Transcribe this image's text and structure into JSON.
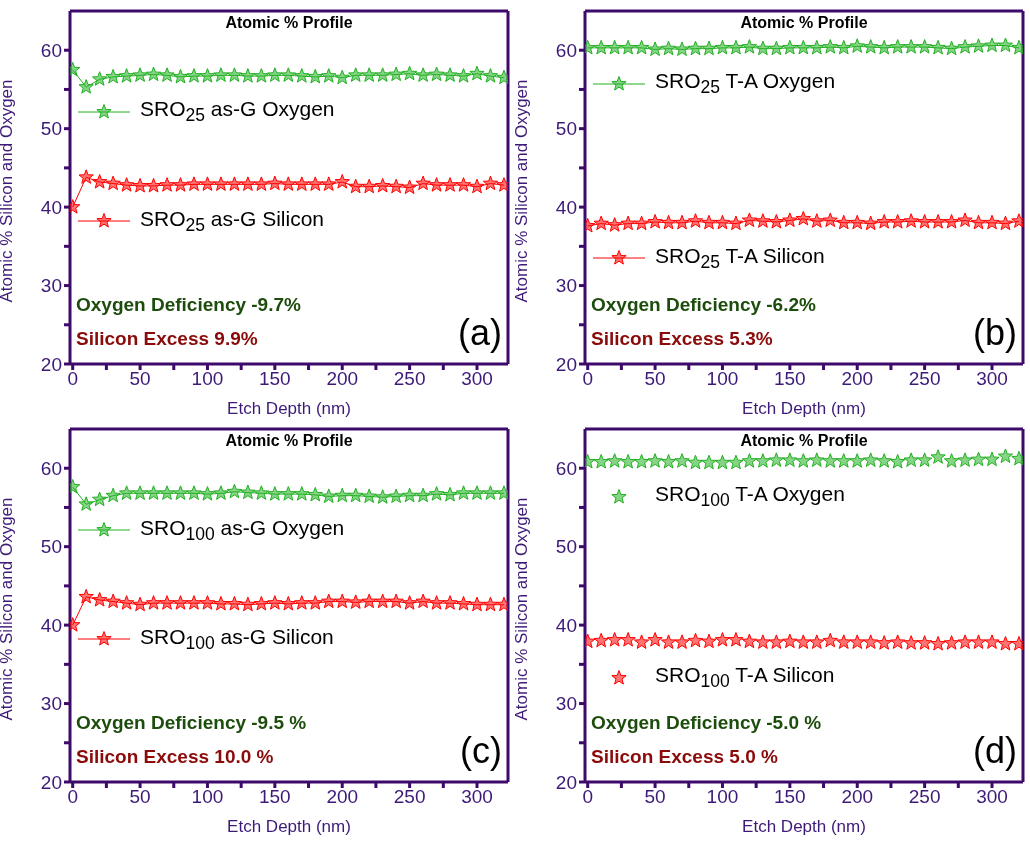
{
  "chart_data": [
    {
      "type": "line",
      "title": "Atomic % Profile",
      "xlabel": "Etch Depth (nm)",
      "ylabel": "Atomic % Silicon and Oxygen",
      "legend": "top left",
      "marker": "star",
      "x": [
        0,
        10,
        20,
        30,
        40,
        50,
        60,
        70,
        80,
        90,
        100,
        110,
        120,
        130,
        140,
        150,
        160,
        170,
        180,
        190,
        200,
        210,
        220,
        230,
        240,
        250,
        260,
        270,
        280,
        290,
        300,
        310,
        320
      ],
      "series": [
        {
          "name": "SRO$_{25}$ as-G Oxygen",
          "color": "#22b022",
          "values": [
            57.5,
            55.3,
            56.3,
            56.6,
            56.7,
            56.8,
            56.9,
            56.8,
            56.6,
            56.7,
            56.7,
            56.8,
            56.8,
            56.7,
            56.7,
            56.8,
            56.8,
            56.7,
            56.6,
            56.7,
            56.5,
            56.8,
            56.8,
            56.8,
            56.9,
            57.0,
            56.8,
            56.9,
            56.8,
            56.7,
            57.0,
            56.7,
            56.5
          ]
        },
        {
          "name": "SRO$_{25}$ as-G Silicon",
          "color": "#ff0000",
          "values": [
            40.0,
            43.8,
            43.2,
            43.0,
            42.8,
            42.7,
            42.7,
            42.8,
            42.8,
            42.9,
            42.9,
            42.9,
            42.9,
            42.9,
            42.9,
            43.0,
            42.9,
            42.9,
            42.9,
            42.9,
            43.2,
            42.6,
            42.6,
            42.7,
            42.6,
            42.5,
            43.0,
            42.8,
            42.8,
            42.8,
            42.6,
            43.0,
            42.8
          ]
        }
      ],
      "xlim": [
        -2,
        323
      ],
      "ylim": [
        20,
        65
      ],
      "xticks": [
        0,
        {
          "value": 25,
          "label": null
        },
        50,
        {
          "value": 75,
          "label": null
        },
        100,
        {
          "value": 125,
          "label": null
        },
        150,
        {
          "value": 175,
          "label": null
        },
        200,
        {
          "value": 225,
          "label": null
        },
        250,
        {
          "value": 275,
          "label": null
        },
        300
      ],
      "yticks": [
        20,
        {
          "value": 25,
          "label": null
        },
        30,
        {
          "value": 35,
          "label": null
        },
        40,
        {
          "value": 45,
          "label": null
        },
        50,
        {
          "value": 55,
          "label": null
        },
        60
      ],
      "annotations": [
        "Oxygen Deficiency -9.7%",
        "Silicon Excess 9.9%",
        "(a)"
      ]
    },
    {
      "type": "line",
      "title": "Atomic % Profile",
      "xlabel": "Etch Depth (nm)",
      "ylabel": "Atomic % Silicon and Oxygen",
      "legend": "top left",
      "marker": "star",
      "x": [
        0,
        10,
        20,
        30,
        40,
        50,
        60,
        70,
        80,
        90,
        100,
        110,
        120,
        130,
        140,
        150,
        160,
        170,
        180,
        190,
        200,
        210,
        220,
        230,
        240,
        250,
        260,
        270,
        280,
        290,
        300,
        310,
        320
      ],
      "series": [
        {
          "name": "SRO$_{25}$ T-A Oxygen",
          "color": "#22b022",
          "values": [
            60.3,
            60.3,
            60.3,
            60.3,
            60.3,
            60.1,
            60.2,
            60.1,
            60.2,
            60.2,
            60.3,
            60.3,
            60.4,
            60.2,
            60.2,
            60.3,
            60.3,
            60.3,
            60.4,
            60.3,
            60.5,
            60.4,
            60.3,
            60.4,
            60.4,
            60.4,
            60.3,
            60.2,
            60.4,
            60.5,
            60.6,
            60.6,
            60.3
          ]
        },
        {
          "name": "SRO$_{25}$ T-A Silicon",
          "color": "#ff0000",
          "values": [
            37.6,
            37.9,
            37.7,
            37.9,
            37.9,
            38.1,
            38.0,
            38.0,
            38.2,
            38.0,
            38.0,
            37.9,
            38.3,
            38.2,
            38.1,
            38.3,
            38.5,
            38.2,
            38.3,
            38.0,
            38.0,
            37.9,
            38.1,
            38.1,
            38.2,
            38.1,
            38.1,
            38.1,
            38.3,
            38.0,
            38.0,
            37.9,
            38.2
          ]
        }
      ],
      "xlim": [
        -2,
        323
      ],
      "ylim": [
        20,
        65
      ],
      "xticks": [
        0,
        {
          "value": 25,
          "label": null
        },
        50,
        {
          "value": 75,
          "label": null
        },
        100,
        {
          "value": 125,
          "label": null
        },
        150,
        {
          "value": 175,
          "label": null
        },
        200,
        {
          "value": 225,
          "label": null
        },
        250,
        {
          "value": 275,
          "label": null
        },
        300
      ],
      "yticks": [
        20,
        {
          "value": 25,
          "label": null
        },
        30,
        {
          "value": 35,
          "label": null
        },
        40,
        {
          "value": 45,
          "label": null
        },
        50,
        {
          "value": 55,
          "label": null
        },
        60
      ],
      "annotations": [
        "Oxygen Deficiency -6.2%",
        "Silicon Excess 5.3%",
        "(b)"
      ]
    },
    {
      "type": "line",
      "title": "Atomic % Profile",
      "xlabel": "Etch Depth (nm)",
      "ylabel": "Atomic % Silicon and Oxygen",
      "legend": "top left",
      "marker": "star",
      "x": [
        0,
        10,
        20,
        30,
        40,
        50,
        60,
        70,
        80,
        90,
        100,
        110,
        120,
        130,
        140,
        150,
        160,
        170,
        180,
        190,
        200,
        210,
        220,
        230,
        240,
        250,
        260,
        270,
        280,
        290,
        300,
        310,
        320
      ],
      "series": [
        {
          "name": "SRO$_{100}$ as-G Oxygen",
          "color": "#22b022",
          "values": [
            57.6,
            55.4,
            56.0,
            56.5,
            56.8,
            56.8,
            56.8,
            56.8,
            56.8,
            56.8,
            56.7,
            56.8,
            57.0,
            56.9,
            56.8,
            56.7,
            56.7,
            56.7,
            56.6,
            56.4,
            56.5,
            56.5,
            56.4,
            56.3,
            56.4,
            56.5,
            56.5,
            56.7,
            56.6,
            56.8,
            56.8,
            56.8,
            56.8
          ]
        },
        {
          "name": "SRO$_{100}$ as-G Silicon",
          "color": "#ff0000",
          "values": [
            40.0,
            43.6,
            43.2,
            43.0,
            42.8,
            42.6,
            42.8,
            42.8,
            42.8,
            42.8,
            42.8,
            42.7,
            42.7,
            42.6,
            42.7,
            42.8,
            42.7,
            42.8,
            42.8,
            43.0,
            43.0,
            42.9,
            43.0,
            43.0,
            43.0,
            42.8,
            43.0,
            42.8,
            42.8,
            42.7,
            42.6,
            42.6,
            42.6
          ]
        }
      ],
      "xlim": [
        -2,
        323
      ],
      "ylim": [
        20,
        65
      ],
      "xticks": [
        0,
        {
          "value": 25,
          "label": null
        },
        50,
        {
          "value": 75,
          "label": null
        },
        100,
        {
          "value": 125,
          "label": null
        },
        150,
        {
          "value": 175,
          "label": null
        },
        200,
        {
          "value": 225,
          "label": null
        },
        250,
        {
          "value": 275,
          "label": null
        },
        300
      ],
      "yticks": [
        20,
        {
          "value": 25,
          "label": null
        },
        30,
        {
          "value": 35,
          "label": null
        },
        40,
        {
          "value": 45,
          "label": null
        },
        50,
        {
          "value": 55,
          "label": null
        },
        60
      ],
      "annotations": [
        "Oxygen Deficiency -9.5 %",
        "Silicon Excess 10.0 %",
        "(c)"
      ]
    },
    {
      "type": "scatter",
      "title": "Atomic % Profile",
      "xlabel": "Etch Depth (nm)",
      "ylabel": "Atomic % Silicon and Oxygen",
      "legend": "top left",
      "marker": "star",
      "x": [
        0,
        10,
        20,
        30,
        40,
        50,
        60,
        70,
        80,
        90,
        100,
        110,
        120,
        130,
        140,
        150,
        160,
        170,
        180,
        190,
        200,
        210,
        220,
        230,
        240,
        250,
        260,
        270,
        280,
        290,
        300,
        310,
        320
      ],
      "series": [
        {
          "name": "SRO$_{100}$ T-A Oxygen",
          "color": "#22b022",
          "values": [
            60.8,
            60.8,
            60.9,
            60.8,
            60.8,
            60.9,
            60.8,
            60.9,
            60.7,
            60.7,
            60.7,
            60.7,
            60.9,
            60.9,
            61.0,
            61.0,
            60.9,
            61.0,
            60.9,
            60.9,
            60.9,
            61.0,
            60.9,
            60.8,
            61.0,
            61.0,
            61.4,
            60.9,
            61.0,
            61.1,
            61.1,
            61.5,
            61.2
          ]
        },
        {
          "name": "SRO$_{100}$ T-A Silicon",
          "color": "#ff0000",
          "values": [
            37.9,
            38.0,
            38.1,
            38.1,
            37.8,
            38.1,
            37.8,
            37.8,
            38.0,
            37.9,
            38.1,
            38.1,
            37.9,
            37.8,
            37.8,
            37.9,
            37.8,
            37.8,
            38.0,
            37.8,
            37.8,
            37.8,
            37.7,
            37.8,
            37.7,
            37.7,
            37.6,
            37.7,
            37.8,
            37.8,
            37.8,
            37.6,
            37.6
          ]
        }
      ],
      "xlim": [
        -2,
        323
      ],
      "ylim": [
        20,
        65
      ],
      "xticks": [
        0,
        {
          "value": 25,
          "label": null
        },
        50,
        {
          "value": 75,
          "label": null
        },
        100,
        {
          "value": 125,
          "label": null
        },
        150,
        {
          "value": 175,
          "label": null
        },
        200,
        {
          "value": 225,
          "label": null
        },
        250,
        {
          "value": 275,
          "label": null
        },
        300
      ],
      "yticks": [
        20,
        {
          "value": 25,
          "label": null
        },
        30,
        {
          "value": 35,
          "label": null
        },
        40,
        {
          "value": 45,
          "label": null
        },
        50,
        {
          "value": 55,
          "label": null
        },
        60
      ],
      "annotations": [
        "Oxygen Deficiency -5.0 %",
        "Silicon Excess 5.0 %",
        "(d)"
      ]
    }
  ]
}
